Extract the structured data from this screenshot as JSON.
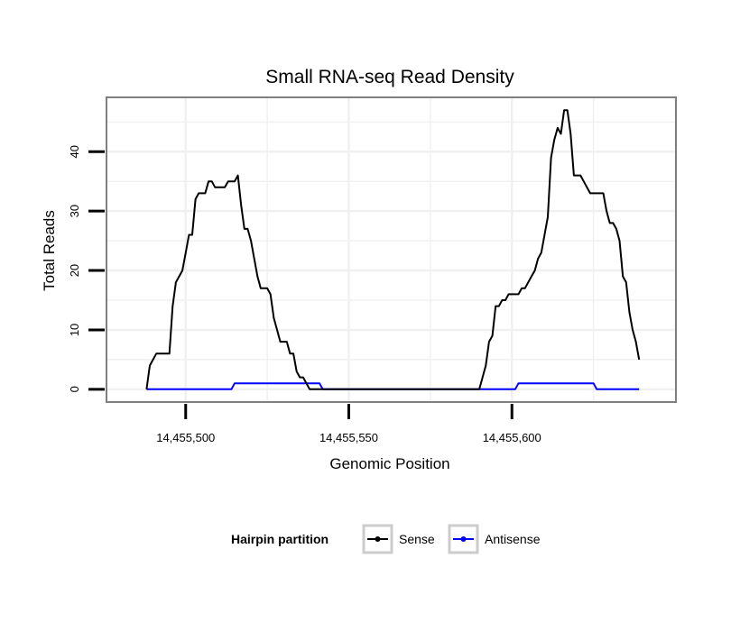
{
  "chart_data": {
    "type": "line",
    "title": "Small RNA-seq Read Density",
    "xlabel": "Genomic Position",
    "ylabel": "Total Reads",
    "xlim": [
      14455476,
      14455650
    ],
    "ylim": [
      -2,
      49
    ],
    "x_ticks": [
      14455500,
      14455550,
      14455600
    ],
    "x_tick_labels": [
      "14,455,500",
      "14,455,550",
      "14,455,600"
    ],
    "y_ticks": [
      0,
      10,
      20,
      30,
      40
    ],
    "y_tick_labels": [
      "0",
      "10",
      "20",
      "30",
      "40"
    ],
    "legend_title": "Hairpin partition",
    "series": [
      {
        "name": "Sense",
        "color": "#000000",
        "points": [
          [
            14455488,
            0
          ],
          [
            14455489,
            4
          ],
          [
            14455490,
            5
          ],
          [
            14455491,
            6
          ],
          [
            14455492,
            6
          ],
          [
            14455493,
            6
          ],
          [
            14455494,
            6
          ],
          [
            14455495,
            6
          ],
          [
            14455496,
            14
          ],
          [
            14455497,
            18
          ],
          [
            14455498,
            19
          ],
          [
            14455499,
            20
          ],
          [
            14455500,
            23
          ],
          [
            14455501,
            26
          ],
          [
            14455502,
            26
          ],
          [
            14455503,
            32
          ],
          [
            14455504,
            33
          ],
          [
            14455505,
            33
          ],
          [
            14455506,
            33
          ],
          [
            14455507,
            35
          ],
          [
            14455508,
            35
          ],
          [
            14455509,
            34
          ],
          [
            14455510,
            34
          ],
          [
            14455511,
            34
          ],
          [
            14455512,
            34
          ],
          [
            14455513,
            35
          ],
          [
            14455514,
            35
          ],
          [
            14455515,
            35
          ],
          [
            14455516,
            36
          ],
          [
            14455517,
            31
          ],
          [
            14455518,
            27
          ],
          [
            14455519,
            27
          ],
          [
            14455520,
            25
          ],
          [
            14455521,
            22
          ],
          [
            14455522,
            19
          ],
          [
            14455523,
            17
          ],
          [
            14455524,
            17
          ],
          [
            14455525,
            17
          ],
          [
            14455526,
            16
          ],
          [
            14455527,
            12
          ],
          [
            14455528,
            10
          ],
          [
            14455529,
            8
          ],
          [
            14455530,
            8
          ],
          [
            14455531,
            8
          ],
          [
            14455532,
            6
          ],
          [
            14455533,
            6
          ],
          [
            14455534,
            3
          ],
          [
            14455535,
            2
          ],
          [
            14455536,
            2
          ],
          [
            14455537,
            1
          ],
          [
            14455538,
            0
          ],
          [
            14455590,
            0
          ],
          [
            14455591,
            2
          ],
          [
            14455592,
            4
          ],
          [
            14455593,
            8
          ],
          [
            14455594,
            9
          ],
          [
            14455595,
            14
          ],
          [
            14455596,
            14
          ],
          [
            14455597,
            15
          ],
          [
            14455598,
            15
          ],
          [
            14455599,
            16
          ],
          [
            14455600,
            16
          ],
          [
            14455601,
            16
          ],
          [
            14455602,
            16
          ],
          [
            14455603,
            17
          ],
          [
            14455604,
            17
          ],
          [
            14455605,
            18
          ],
          [
            14455606,
            19
          ],
          [
            14455607,
            20
          ],
          [
            14455608,
            22
          ],
          [
            14455609,
            23
          ],
          [
            14455610,
            26
          ],
          [
            14455611,
            29
          ],
          [
            14455612,
            39
          ],
          [
            14455613,
            42
          ],
          [
            14455614,
            44
          ],
          [
            14455615,
            43
          ],
          [
            14455616,
            47
          ],
          [
            14455617,
            47
          ],
          [
            14455618,
            43
          ],
          [
            14455619,
            36
          ],
          [
            14455620,
            36
          ],
          [
            14455621,
            36
          ],
          [
            14455622,
            35
          ],
          [
            14455623,
            34
          ],
          [
            14455624,
            33
          ],
          [
            14455625,
            33
          ],
          [
            14455626,
            33
          ],
          [
            14455627,
            33
          ],
          [
            14455628,
            33
          ],
          [
            14455629,
            30
          ],
          [
            14455630,
            28
          ],
          [
            14455631,
            28
          ],
          [
            14455632,
            27
          ],
          [
            14455633,
            25
          ],
          [
            14455634,
            19
          ],
          [
            14455635,
            18
          ],
          [
            14455636,
            13
          ],
          [
            14455637,
            10
          ],
          [
            14455638,
            8
          ],
          [
            14455639,
            5
          ]
        ]
      },
      {
        "name": "Antisense",
        "color": "#0000ff",
        "points": [
          [
            14455488,
            0
          ],
          [
            14455514,
            0
          ],
          [
            14455515,
            1
          ],
          [
            14455541,
            1
          ],
          [
            14455542,
            0
          ],
          [
            14455601,
            0
          ],
          [
            14455602,
            1
          ],
          [
            14455625,
            1
          ],
          [
            14455626,
            0
          ],
          [
            14455639,
            0
          ]
        ]
      }
    ]
  }
}
